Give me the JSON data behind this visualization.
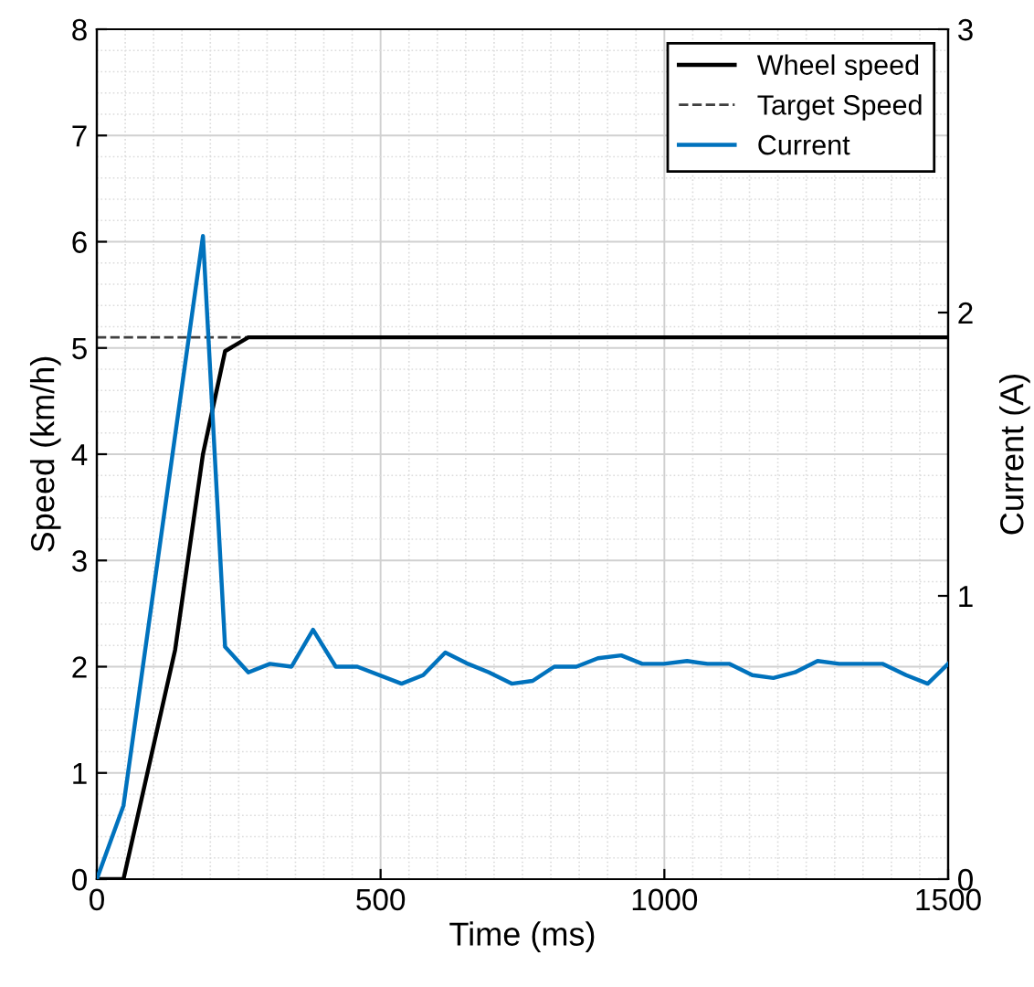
{
  "chart_data": {
    "type": "line",
    "xlabel": "Time (ms)",
    "ylabel": "Speed (km/h)",
    "y2label": "Current (A)",
    "xlim": [
      0,
      1500
    ],
    "xticks": [
      0,
      500,
      1000,
      1500
    ],
    "ylim": [
      0,
      8
    ],
    "yticks": [
      0,
      1,
      2,
      3,
      4,
      5,
      6,
      7,
      8
    ],
    "y2lim": [
      0,
      3
    ],
    "y2ticks": [
      0,
      1,
      2,
      3
    ],
    "grid": true,
    "legend": "top right",
    "series": [
      {
        "name": "Wheel speed",
        "color": "#000000",
        "line_style": "solid",
        "x": [
          0,
          47,
          138,
          187,
          226,
          267,
          1500
        ],
        "values": [
          0,
          0,
          2.16,
          4.0,
          4.97,
          5.1,
          5.1
        ]
      },
      {
        "name": "Target Speed",
        "color": "#404040",
        "line_style": "dashed",
        "x": [
          0,
          267
        ],
        "values": [
          5.1,
          5.1
        ]
      },
      {
        "name": "Current",
        "color": "#0072bd",
        "line_style": "solid",
        "axis": "y2",
        "x": [
          0,
          47,
          187,
          226,
          267,
          305,
          343,
          381,
          421,
          459,
          537,
          575,
          614,
          654,
          691,
          731,
          768,
          806,
          845,
          883,
          924,
          961,
          999,
          1040,
          1076,
          1115,
          1155,
          1192,
          1230,
          1270,
          1308,
          1348,
          1385,
          1426,
          1464,
          1500
        ],
        "values": [
          0,
          0.26,
          2.27,
          0.82,
          0.73,
          0.76,
          0.75,
          0.88,
          0.75,
          0.75,
          0.69,
          0.72,
          0.8,
          0.76,
          0.73,
          0.69,
          0.7,
          0.75,
          0.75,
          0.78,
          0.79,
          0.76,
          0.76,
          0.77,
          0.76,
          0.76,
          0.72,
          0.71,
          0.73,
          0.77,
          0.76,
          0.76,
          0.76,
          0.72,
          0.69,
          0.76
        ]
      }
    ]
  }
}
